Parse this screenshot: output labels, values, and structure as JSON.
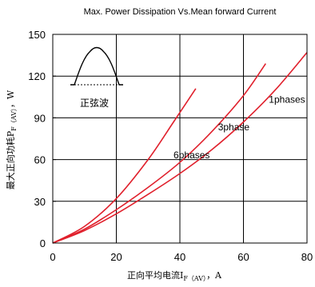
{
  "chart_data": {
    "type": "line",
    "title": "Max. Power Dissipation Vs.Mean forward Current",
    "xlabel": {
      "main": "正向平均电流I",
      "sub": "F（AV）",
      "unit": "，A"
    },
    "ylabel": {
      "main": "最大正向功耗P",
      "sub": "F（AV）",
      "unit": "，W"
    },
    "xlim": [
      0,
      80
    ],
    "ylim": [
      0,
      150
    ],
    "xticks": [
      0,
      20,
      40,
      60,
      80
    ],
    "yticks": [
      0,
      30,
      60,
      90,
      120,
      150
    ],
    "grid": true,
    "line_color": "#e0202c",
    "series": [
      {
        "name": "6phases",
        "x": [
          0,
          10,
          20,
          30,
          38,
          45
        ],
        "y": [
          0,
          12,
          32,
          60,
          87,
          111
        ]
      },
      {
        "name": "3phase",
        "x": [
          0,
          10,
          20,
          30,
          40,
          50,
          60,
          67
        ],
        "y": [
          0,
          10,
          24,
          40,
          58,
          80,
          106,
          129
        ]
      },
      {
        "name": "1phases",
        "x": [
          0,
          10,
          20,
          30,
          40,
          50,
          60,
          70,
          80
        ],
        "y": [
          0,
          9,
          21,
          35,
          50,
          67,
          87,
          110,
          137
        ]
      }
    ],
    "inset": {
      "label": "正弦波"
    }
  }
}
